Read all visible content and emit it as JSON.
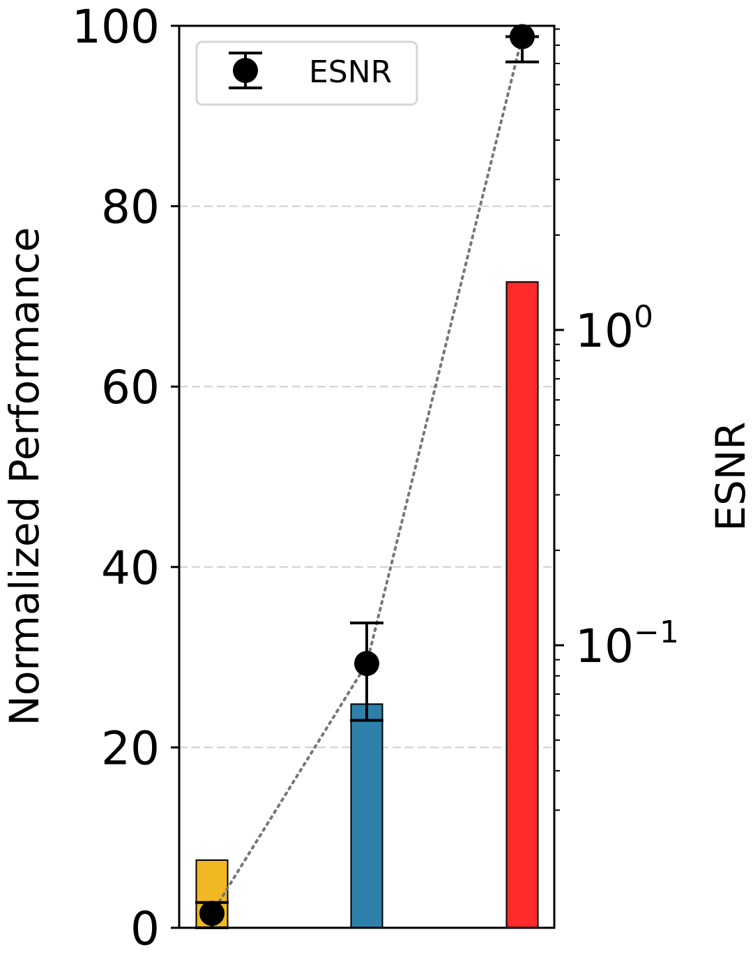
{
  "chart_data": {
    "type": "bar",
    "categories": [
      "",
      "",
      ""
    ],
    "bars": {
      "values": [
        7.5,
        24.8,
        71.6
      ],
      "colors": [
        "#f2b824",
        "#2d81ab",
        "#ff2a2a"
      ]
    },
    "left_axis": {
      "label": "Normalized Performance",
      "ylim": [
        0,
        100
      ],
      "ticks": [
        0,
        20,
        40,
        60,
        80,
        100
      ],
      "tick_labels": [
        "0",
        "20",
        "40",
        "60",
        "80",
        "100"
      ],
      "grid": true
    },
    "right_axis": {
      "label": "ESNR",
      "scale": "log",
      "ticks": [
        {
          "value": 1,
          "label": "10",
          "exp": "0"
        },
        {
          "value": 0.1,
          "label": "10",
          "exp": "−1"
        }
      ]
    },
    "esnr_series": {
      "name": "ESNR",
      "values_percent_axis": [
        1.6,
        29.3,
        98.8
      ],
      "error_low_percent_axis": [
        0,
        23.0,
        96.0
      ],
      "error_high_percent_axis": [
        2.8,
        33.8,
        98.8
      ],
      "line_style": "dotted",
      "line_color": "#777777"
    },
    "legend": {
      "entries": [
        "ESNR"
      ],
      "placement": "top-left"
    }
  }
}
